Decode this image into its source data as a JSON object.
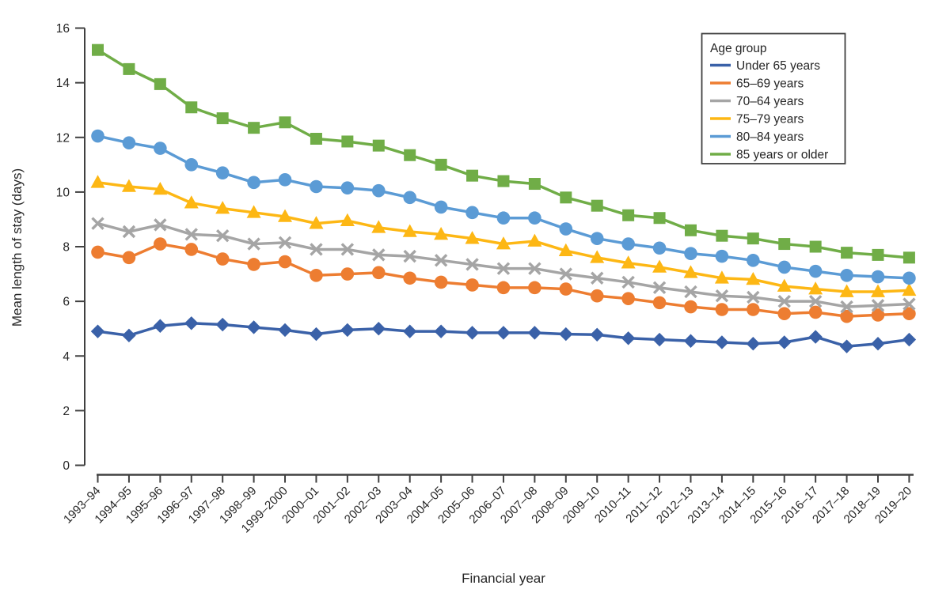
{
  "chart_data": {
    "type": "line",
    "title": "",
    "xlabel": "Financial year",
    "ylabel": "Mean length of stay (days)",
    "ylim": [
      0,
      16
    ],
    "ytick_step": 2,
    "yticks": [
      0,
      2,
      4,
      6,
      8,
      10,
      12,
      14,
      16
    ],
    "grid": false,
    "legend_title": "Age group",
    "legend_position": "top-right",
    "axis_color": "#404040",
    "text_color": "#262626",
    "categories": [
      "1993–94",
      "1994–95",
      "1995–96",
      "1996–97",
      "1997–98",
      "1998–99",
      "1999–2000",
      "2000–01",
      "2001–02",
      "2002–03",
      "2003–04",
      "2004–05",
      "2005–06",
      "2006–07",
      "2007–08",
      "2008–09",
      "2009–10",
      "2010–11",
      "2011–12",
      "2012–13",
      "2013–14",
      "2014–15",
      "2015–16",
      "2016–17",
      "2017–18",
      "2018–19",
      "2019–20"
    ],
    "series": [
      {
        "name": "Under 65 years",
        "color": "#3a61a8",
        "marker": "diamond",
        "values": [
          4.9,
          4.75,
          5.1,
          5.2,
          5.15,
          5.05,
          4.95,
          4.8,
          4.95,
          5.0,
          4.9,
          4.9,
          4.85,
          4.85,
          4.85,
          4.8,
          4.78,
          4.65,
          4.6,
          4.55,
          4.5,
          4.45,
          4.5,
          4.7,
          4.35,
          4.45,
          4.6
        ]
      },
      {
        "name": "65–69 years",
        "color": "#ed7d31",
        "marker": "circle",
        "values": [
          7.8,
          7.6,
          8.1,
          7.9,
          7.55,
          7.35,
          7.45,
          6.95,
          7.0,
          7.05,
          6.85,
          6.7,
          6.6,
          6.5,
          6.5,
          6.45,
          6.2,
          6.1,
          5.95,
          5.8,
          5.7,
          5.7,
          5.55,
          5.6,
          5.45,
          5.5,
          5.55
        ]
      },
      {
        "name": "70–64 years",
        "color": "#a5a5a5",
        "marker": "x",
        "values": [
          8.85,
          8.55,
          8.8,
          8.45,
          8.4,
          8.1,
          8.15,
          7.9,
          7.9,
          7.7,
          7.65,
          7.5,
          7.35,
          7.2,
          7.2,
          7.0,
          6.85,
          6.7,
          6.5,
          6.35,
          6.2,
          6.15,
          6.0,
          6.0,
          5.8,
          5.85,
          5.9
        ]
      },
      {
        "name": "75–79 years",
        "color": "#fdb714",
        "marker": "triangle",
        "values": [
          10.35,
          10.2,
          10.1,
          9.6,
          9.4,
          9.25,
          9.1,
          8.85,
          8.95,
          8.7,
          8.55,
          8.45,
          8.3,
          8.1,
          8.2,
          7.85,
          7.6,
          7.4,
          7.25,
          7.05,
          6.85,
          6.8,
          6.55,
          6.45,
          6.35,
          6.35,
          6.4
        ]
      },
      {
        "name": "80–84 years",
        "color": "#5b9bd5",
        "marker": "circle",
        "values": [
          12.05,
          11.8,
          11.6,
          11.0,
          10.7,
          10.35,
          10.45,
          10.2,
          10.15,
          10.05,
          9.8,
          9.45,
          9.25,
          9.05,
          9.05,
          8.65,
          8.3,
          8.1,
          7.95,
          7.75,
          7.65,
          7.5,
          7.25,
          7.1,
          6.95,
          6.9,
          6.85
        ]
      },
      {
        "name": "85 years or older",
        "color": "#70ad47",
        "marker": "square",
        "values": [
          15.2,
          14.5,
          13.95,
          13.1,
          12.7,
          12.35,
          12.55,
          11.95,
          11.85,
          11.7,
          11.35,
          11.0,
          10.6,
          10.4,
          10.3,
          9.8,
          9.5,
          9.15,
          9.05,
          8.6,
          8.4,
          8.3,
          8.1,
          8.0,
          7.78,
          7.7,
          7.6
        ]
      }
    ]
  }
}
